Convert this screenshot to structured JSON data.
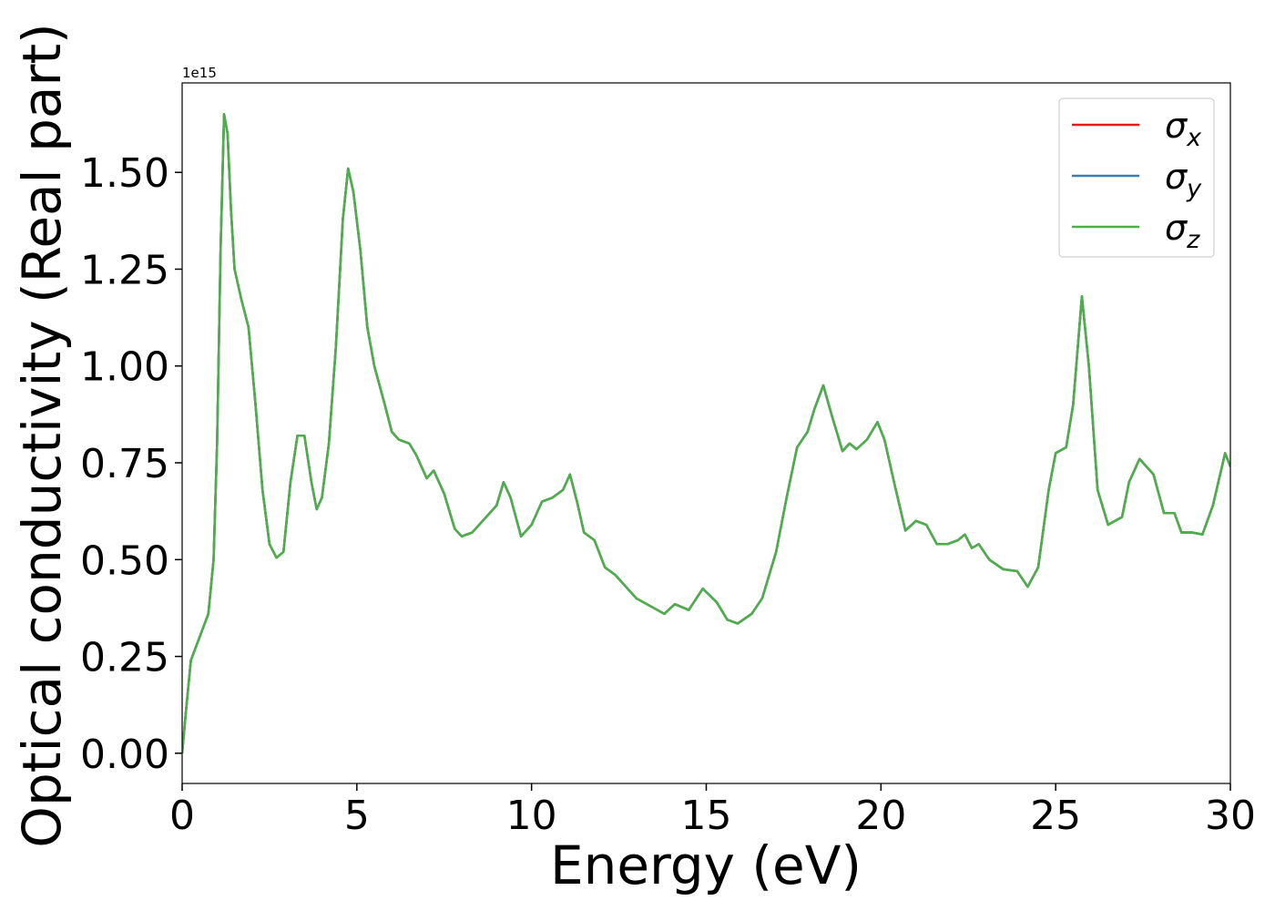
{
  "chart_data": {
    "type": "line",
    "xlabel": "Energy (eV)",
    "ylabel": "Optical conductivity (Real part)",
    "offset_text": "1e15",
    "x": [
      0,
      0.1,
      0.25,
      0.5,
      0.75,
      0.9,
      1.0,
      1.1,
      1.2,
      1.3,
      1.4,
      1.5,
      1.7,
      1.9,
      2.1,
      2.3,
      2.5,
      2.7,
      2.9,
      3.1,
      3.3,
      3.5,
      3.7,
      3.85,
      4.0,
      4.2,
      4.4,
      4.6,
      4.75,
      4.9,
      5.1,
      5.3,
      5.5,
      5.8,
      6.0,
      6.2,
      6.5,
      6.7,
      7.0,
      7.2,
      7.5,
      7.8,
      8.0,
      8.3,
      8.6,
      9.0,
      9.2,
      9.4,
      9.7,
      10.0,
      10.3,
      10.6,
      10.9,
      11.1,
      11.3,
      11.5,
      11.8,
      12.1,
      12.4,
      12.7,
      13.0,
      13.4,
      13.8,
      14.1,
      14.5,
      14.9,
      15.3,
      15.6,
      15.9,
      16.3,
      16.6,
      17.0,
      17.3,
      17.6,
      17.9,
      18.1,
      18.35,
      18.6,
      18.9,
      19.1,
      19.3,
      19.6,
      19.9,
      20.1,
      20.4,
      20.7,
      21.0,
      21.3,
      21.6,
      21.9,
      22.2,
      22.4,
      22.6,
      22.8,
      23.1,
      23.5,
      23.9,
      24.2,
      24.5,
      24.8,
      25.0,
      25.3,
      25.5,
      25.75,
      25.95,
      26.2,
      26.5,
      26.7,
      26.9,
      27.1,
      27.4,
      27.8,
      28.1,
      28.4,
      28.6,
      28.9,
      29.2,
      29.5,
      29.85,
      30.0
    ],
    "series": [
      {
        "name": "σx",
        "color": "#e41a1c",
        "values": [
          0,
          0.1,
          0.24,
          0.3,
          0.36,
          0.5,
          0.8,
          1.3,
          1.65,
          1.6,
          1.4,
          1.25,
          1.17,
          1.1,
          0.9,
          0.68,
          0.54,
          0.505,
          0.52,
          0.7,
          0.82,
          0.82,
          0.7,
          0.63,
          0.66,
          0.8,
          1.05,
          1.38,
          1.51,
          1.45,
          1.3,
          1.1,
          1.0,
          0.9,
          0.83,
          0.81,
          0.8,
          0.77,
          0.71,
          0.73,
          0.67,
          0.58,
          0.56,
          0.57,
          0.6,
          0.64,
          0.7,
          0.66,
          0.56,
          0.59,
          0.65,
          0.66,
          0.68,
          0.72,
          0.65,
          0.57,
          0.55,
          0.48,
          0.46,
          0.43,
          0.4,
          0.38,
          0.36,
          0.385,
          0.37,
          0.425,
          0.39,
          0.345,
          0.335,
          0.36,
          0.4,
          0.52,
          0.66,
          0.79,
          0.83,
          0.89,
          0.95,
          0.87,
          0.78,
          0.8,
          0.785,
          0.81,
          0.855,
          0.81,
          0.69,
          0.575,
          0.6,
          0.59,
          0.54,
          0.54,
          0.55,
          0.565,
          0.53,
          0.54,
          0.5,
          0.475,
          0.47,
          0.43,
          0.48,
          0.68,
          0.775,
          0.79,
          0.9,
          1.18,
          1.0,
          0.68,
          0.59,
          0.6,
          0.61,
          0.7,
          0.76,
          0.72,
          0.62,
          0.62,
          0.57,
          0.57,
          0.565,
          0.64,
          0.775,
          0.74
        ]
      },
      {
        "name": "σy",
        "color": "#377eb8",
        "values": [
          0,
          0.1,
          0.24,
          0.3,
          0.36,
          0.5,
          0.8,
          1.3,
          1.65,
          1.6,
          1.4,
          1.25,
          1.17,
          1.1,
          0.9,
          0.68,
          0.54,
          0.505,
          0.52,
          0.7,
          0.82,
          0.82,
          0.7,
          0.63,
          0.66,
          0.8,
          1.05,
          1.38,
          1.51,
          1.45,
          1.3,
          1.1,
          1.0,
          0.9,
          0.83,
          0.81,
          0.8,
          0.77,
          0.71,
          0.73,
          0.67,
          0.58,
          0.56,
          0.57,
          0.6,
          0.64,
          0.7,
          0.66,
          0.56,
          0.59,
          0.65,
          0.66,
          0.68,
          0.72,
          0.65,
          0.57,
          0.55,
          0.48,
          0.46,
          0.43,
          0.4,
          0.38,
          0.36,
          0.385,
          0.37,
          0.425,
          0.39,
          0.345,
          0.335,
          0.36,
          0.4,
          0.52,
          0.66,
          0.79,
          0.83,
          0.89,
          0.95,
          0.87,
          0.78,
          0.8,
          0.785,
          0.81,
          0.855,
          0.81,
          0.69,
          0.575,
          0.6,
          0.59,
          0.54,
          0.54,
          0.55,
          0.565,
          0.53,
          0.54,
          0.5,
          0.475,
          0.47,
          0.43,
          0.48,
          0.68,
          0.775,
          0.79,
          0.9,
          1.18,
          1.0,
          0.68,
          0.59,
          0.6,
          0.61,
          0.7,
          0.76,
          0.72,
          0.62,
          0.62,
          0.57,
          0.57,
          0.565,
          0.64,
          0.775,
          0.74
        ]
      },
      {
        "name": "σz",
        "color": "#4daf4a",
        "values": [
          0,
          0.1,
          0.24,
          0.3,
          0.36,
          0.5,
          0.8,
          1.3,
          1.65,
          1.6,
          1.4,
          1.25,
          1.17,
          1.1,
          0.9,
          0.68,
          0.54,
          0.505,
          0.52,
          0.7,
          0.82,
          0.82,
          0.7,
          0.63,
          0.66,
          0.8,
          1.05,
          1.38,
          1.51,
          1.45,
          1.3,
          1.1,
          1.0,
          0.9,
          0.83,
          0.81,
          0.8,
          0.77,
          0.71,
          0.73,
          0.67,
          0.58,
          0.56,
          0.57,
          0.6,
          0.64,
          0.7,
          0.66,
          0.56,
          0.59,
          0.65,
          0.66,
          0.68,
          0.72,
          0.65,
          0.57,
          0.55,
          0.48,
          0.46,
          0.43,
          0.4,
          0.38,
          0.36,
          0.385,
          0.37,
          0.425,
          0.39,
          0.345,
          0.335,
          0.36,
          0.4,
          0.52,
          0.66,
          0.79,
          0.83,
          0.89,
          0.95,
          0.87,
          0.78,
          0.8,
          0.785,
          0.81,
          0.855,
          0.81,
          0.69,
          0.575,
          0.6,
          0.59,
          0.54,
          0.54,
          0.55,
          0.565,
          0.53,
          0.54,
          0.5,
          0.475,
          0.47,
          0.43,
          0.48,
          0.68,
          0.775,
          0.79,
          0.9,
          1.18,
          1.0,
          0.68,
          0.59,
          0.6,
          0.61,
          0.7,
          0.76,
          0.72,
          0.62,
          0.62,
          0.57,
          0.57,
          0.565,
          0.64,
          0.775,
          0.74
        ]
      }
    ],
    "xlim": [
      0,
      30
    ],
    "xticks": [
      0,
      5,
      10,
      15,
      20,
      25,
      30
    ],
    "ylim": [
      -0.078,
      1.731
    ],
    "yticks": [
      {
        "value": 0,
        "label": "0.00"
      },
      {
        "value": 0.25,
        "label": "0.25"
      },
      {
        "value": 0.5,
        "label": "0.50"
      },
      {
        "value": 0.75,
        "label": "0.75"
      },
      {
        "value": 1.0,
        "label": "1.00"
      },
      {
        "value": 1.25,
        "label": "1.25"
      },
      {
        "value": 1.5,
        "label": "1.50"
      }
    ],
    "legend": "upper right",
    "grid": false
  }
}
